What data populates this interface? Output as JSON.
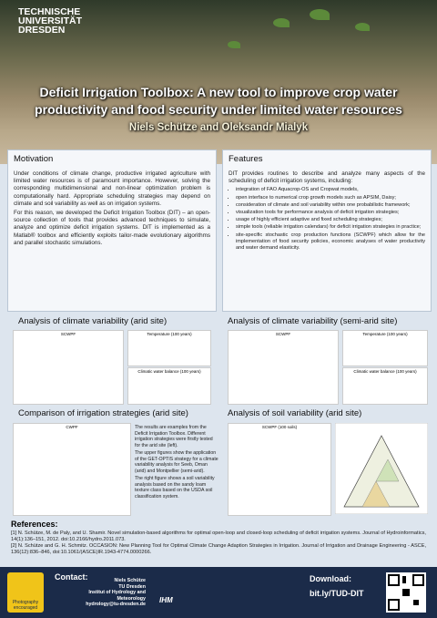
{
  "header": {
    "university": [
      "TECHNISCHE",
      "UNIVERSITÄT",
      "DRESDEN"
    ],
    "title": "Deficit Irrigation Toolbox: A new tool to improve crop water productivity and food security under limited water resources",
    "authors": "Niels Schütze and Oleksandr Mialyk"
  },
  "motivation": {
    "heading": "Motivation",
    "paragraphs": [
      "Under conditions of climate change, productive irrigated agriculture with limited water resources is of paramount importance. However, solving the corresponding multidimensional and non-linear optimization problem is computationally hard. Appropriate scheduling strategies may depend on climate and soil variability as well as on irrigation systems.",
      "For this reason, we developed the Deficit Irrigation Toolbox (DIT) – an open-source collection of tools that provides advanced techniques to simulate, analyze and optimize deficit irrigation systems. DIT is implemented as a Matlab® toolbox and efficiently exploits tailor-made evolutionary algorithms and parallel stochastic simulations."
    ]
  },
  "features": {
    "heading": "Features",
    "intro": "DIT provides routines to describe and analyze many aspects of the scheduling of deficit irrigation systems, including:",
    "items": [
      "integration of FAO Aquacrop-OS and Cropwat models,",
      "open interface to numerical crop growth models such as APSIM, Daisy;",
      "consideration of climate and soil variability within one probabilistic framework;",
      "visualization tools for performance analysis of deficit irrigation strategies;",
      "usage of highly efficient adaptive and fixed scheduling strategies;",
      "simple tools (reliable irrigation calendars) for deficit irrigation strategies in practice;",
      "site-specific stochastic crop production functions (SCWPF) which allow for the implementation of food security policies, economic analyses of water productivity and water demand elasticity."
    ]
  },
  "panels": [
    {
      "heading": "Analysis of climate variability (arid site)",
      "charts": [
        "SCWPF",
        "Temperature (100 years)",
        "Climatic water balance (100 years)"
      ]
    },
    {
      "heading": "Analysis of climate variability (semi-arid site)",
      "charts": [
        "SCWPF",
        "Temperature (100 years)",
        "Climatic water balance (100 years)"
      ]
    },
    {
      "heading": "Comparison of irrigation strategies (arid site)",
      "charts": [
        "CWPF"
      ],
      "text": [
        "The results are examples from the Deficit Irrigation Toolbox. Different irrigation strategies were firstly tested for the arid site (left).",
        "The upper figures show the application of the GET-OPTIS strategy for a climate variability analysis for Seeb, Oman (arid) and Montpellier (semi-arid).",
        "The right figure shows a soil variability analysis based on the sandy loam texture class based on the USDA soil classification system."
      ]
    },
    {
      "heading": "Analysis of soil variability (arid site)",
      "charts": [
        "SCWPF (100 soils)"
      ]
    }
  ],
  "references": {
    "heading": "References:",
    "items": [
      "[1] N. Schütze, M. de Paly, and U. Shamir. Novel simulation-based algorithms for optimal open-loop and closed-loop scheduling of deficit irrigation systems. Journal of Hydroinformatics, 14(1):136–151, 2012. doi:10.2166/hydro.2011.073.",
      "[2] N. Schütze and G. H. Schmitz. OCCASION: New Planning Tool for Optimal Climate Change Adaption Strategies in Irrigation. Journal of Irrigation and Drainage Engineering - ASCE, 136(12):836–846, doi:10.1061/(ASCE)IR.1943-4774.0000266."
    ]
  },
  "footer": {
    "badge": "Photography encouraged",
    "contact_label": "Contact:",
    "contact": [
      "Niels Schütze",
      "TU Dresden",
      "Institut of Hydrology and Meteorology",
      "hydrology@tu-dresden.de"
    ],
    "logo": "IHM",
    "download_label": "Download:",
    "link": "bit.ly/TUD-DIT"
  }
}
